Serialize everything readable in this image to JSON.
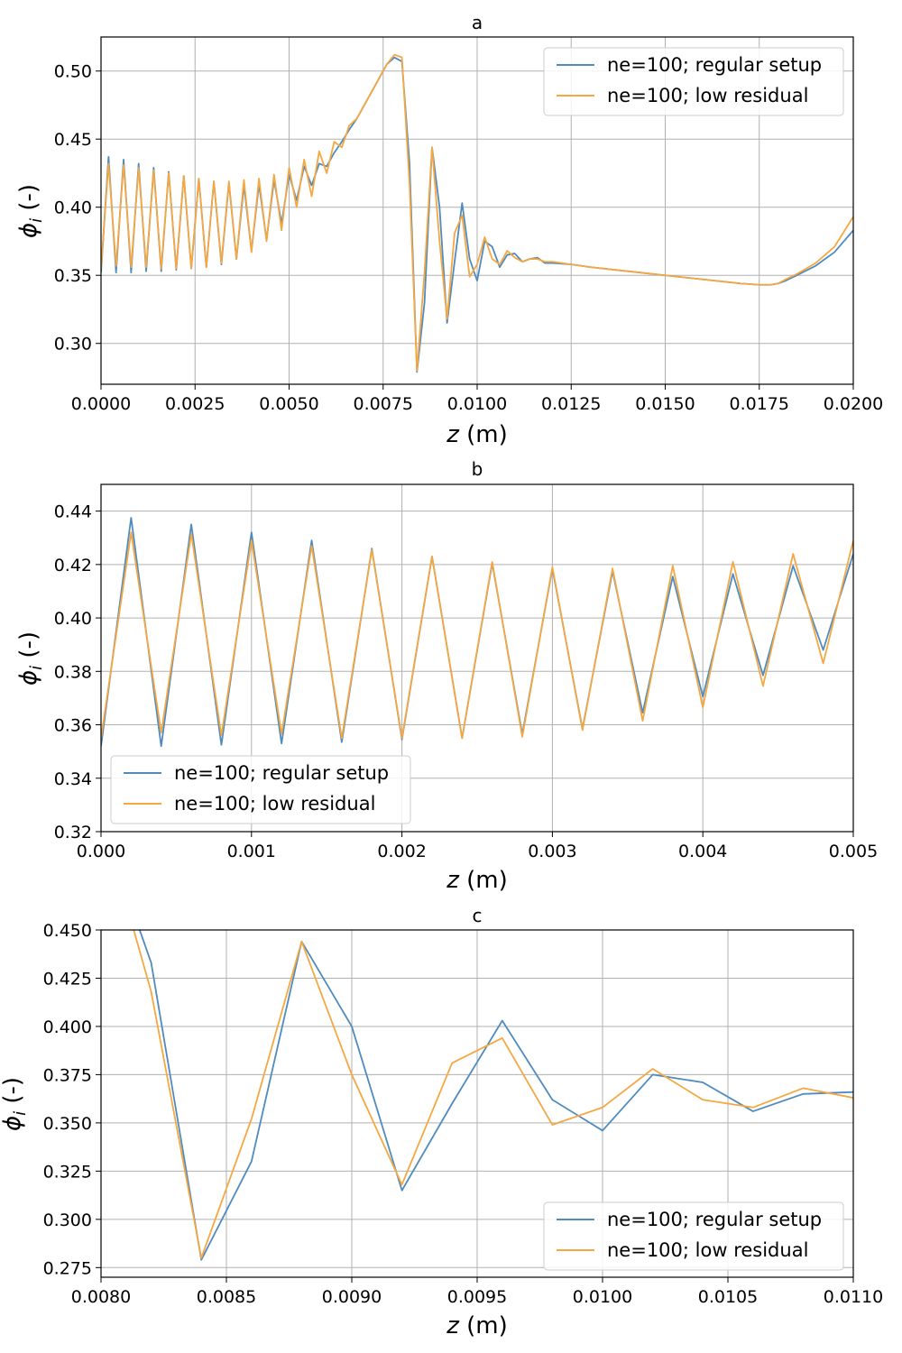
{
  "chart_data": [
    {
      "type": "line",
      "title": "a",
      "xlabel_var": "z",
      "xlabel_unit": " (m)",
      "ylabel_var": "ϕ",
      "ylabel_sub": "i",
      "ylabel_unit": " (-)",
      "xlim": [
        0.0,
        0.02
      ],
      "ylim": [
        0.27,
        0.525
      ],
      "xticks": [
        "0.0000",
        "0.0025",
        "0.0050",
        "0.0075",
        "0.0100",
        "0.0125",
        "0.0150",
        "0.0175",
        "0.0200"
      ],
      "yticks": [
        "0.30",
        "0.35",
        "0.40",
        "0.45",
        "0.50"
      ],
      "legend_position": "upper-right",
      "series": [
        {
          "name": "ne=100; regular setup",
          "color": "#4f8bbf",
          "x": [
            0.0,
            0.0002,
            0.0004,
            0.0006,
            0.0008,
            0.001,
            0.0012,
            0.0014,
            0.0016,
            0.0018,
            0.002,
            0.0022,
            0.0024,
            0.0026,
            0.0028,
            0.003,
            0.0032,
            0.0034,
            0.0036,
            0.0038,
            0.004,
            0.0042,
            0.0044,
            0.0046,
            0.0048,
            0.005,
            0.0052,
            0.0054,
            0.0056,
            0.0058,
            0.006,
            0.0062,
            0.0064,
            0.0066,
            0.0068,
            0.007,
            0.0072,
            0.0074,
            0.0076,
            0.0078,
            0.008,
            0.0082,
            0.0084,
            0.0086,
            0.0088,
            0.009,
            0.0092,
            0.0094,
            0.0096,
            0.0098,
            0.01,
            0.0102,
            0.0104,
            0.0106,
            0.0108,
            0.011,
            0.0112,
            0.0114,
            0.0116,
            0.0118,
            0.012,
            0.0125,
            0.013,
            0.014,
            0.015,
            0.016,
            0.017,
            0.0175,
            0.0178,
            0.018,
            0.0182,
            0.0185,
            0.019,
            0.0195,
            0.02
          ],
          "y": [
            0.352,
            0.437,
            0.352,
            0.435,
            0.352,
            0.432,
            0.353,
            0.429,
            0.353,
            0.426,
            0.354,
            0.423,
            0.355,
            0.421,
            0.356,
            0.419,
            0.358,
            0.418,
            0.362,
            0.416,
            0.368,
            0.417,
            0.376,
            0.42,
            0.388,
            0.424,
            0.405,
            0.43,
            0.416,
            0.432,
            0.43,
            0.44,
            0.448,
            0.457,
            0.465,
            0.475,
            0.485,
            0.495,
            0.505,
            0.51,
            0.507,
            0.433,
            0.279,
            0.33,
            0.444,
            0.4,
            0.315,
            0.36,
            0.403,
            0.362,
            0.346,
            0.375,
            0.371,
            0.356,
            0.365,
            0.366,
            0.36,
            0.362,
            0.363,
            0.359,
            0.359,
            0.358,
            0.356,
            0.353,
            0.35,
            0.347,
            0.344,
            0.343,
            0.343,
            0.344,
            0.346,
            0.35,
            0.357,
            0.367,
            0.383
          ]
        },
        {
          "name": "ne=100; low residual",
          "color": "#f5a742",
          "x": [
            0.0,
            0.0002,
            0.0004,
            0.0006,
            0.0008,
            0.001,
            0.0012,
            0.0014,
            0.0016,
            0.0018,
            0.002,
            0.0022,
            0.0024,
            0.0026,
            0.0028,
            0.003,
            0.0032,
            0.0034,
            0.0036,
            0.0038,
            0.004,
            0.0042,
            0.0044,
            0.0046,
            0.0048,
            0.005,
            0.0052,
            0.0054,
            0.0056,
            0.0058,
            0.006,
            0.0062,
            0.0064,
            0.0066,
            0.0068,
            0.007,
            0.0072,
            0.0074,
            0.0076,
            0.0078,
            0.008,
            0.0082,
            0.0084,
            0.0086,
            0.0088,
            0.009,
            0.0092,
            0.0094,
            0.0096,
            0.0098,
            0.01,
            0.0102,
            0.0104,
            0.0106,
            0.0108,
            0.011,
            0.0112,
            0.0114,
            0.0116,
            0.0118,
            0.012,
            0.0125,
            0.013,
            0.014,
            0.015,
            0.016,
            0.017,
            0.0175,
            0.0178,
            0.018,
            0.0182,
            0.0185,
            0.019,
            0.0195,
            0.02
          ],
          "y": [
            0.355,
            0.432,
            0.357,
            0.431,
            0.356,
            0.429,
            0.356,
            0.427,
            0.355,
            0.425,
            0.355,
            0.423,
            0.355,
            0.421,
            0.356,
            0.419,
            0.359,
            0.419,
            0.362,
            0.42,
            0.367,
            0.421,
            0.375,
            0.424,
            0.383,
            0.429,
            0.4,
            0.435,
            0.408,
            0.441,
            0.425,
            0.448,
            0.444,
            0.46,
            0.465,
            0.475,
            0.485,
            0.495,
            0.505,
            0.512,
            0.51,
            0.418,
            0.28,
            0.352,
            0.444,
            0.375,
            0.318,
            0.381,
            0.394,
            0.349,
            0.358,
            0.378,
            0.362,
            0.358,
            0.368,
            0.363,
            0.36,
            0.362,
            0.362,
            0.36,
            0.36,
            0.358,
            0.356,
            0.353,
            0.35,
            0.347,
            0.344,
            0.343,
            0.343,
            0.344,
            0.347,
            0.351,
            0.359,
            0.371,
            0.393
          ]
        }
      ]
    },
    {
      "type": "line",
      "title": "b",
      "xlabel_var": "z",
      "xlabel_unit": " (m)",
      "ylabel_var": "ϕ",
      "ylabel_sub": "i",
      "ylabel_unit": " (-)",
      "xlim": [
        0.0,
        0.005
      ],
      "ylim": [
        0.32,
        0.45
      ],
      "xticks": [
        "0.000",
        "0.001",
        "0.002",
        "0.003",
        "0.004",
        "0.005"
      ],
      "yticks": [
        "0.32",
        "0.34",
        "0.36",
        "0.38",
        "0.40",
        "0.42",
        "0.44"
      ],
      "legend_position": "lower-left",
      "series": [
        {
          "name": "ne=100; regular setup",
          "color": "#4f8bbf",
          "x": [
            0.0,
            0.0002,
            0.0004,
            0.0006,
            0.0008,
            0.001,
            0.0012,
            0.0014,
            0.0016,
            0.0018,
            0.002,
            0.0022,
            0.0024,
            0.0026,
            0.0028,
            0.003,
            0.0032,
            0.0034,
            0.0036,
            0.0038,
            0.004,
            0.0042,
            0.0044,
            0.0046,
            0.0048,
            0.005
          ],
          "y": [
            0.352,
            0.4375,
            0.352,
            0.435,
            0.3525,
            0.432,
            0.353,
            0.429,
            0.3535,
            0.426,
            0.3545,
            0.423,
            0.355,
            0.4205,
            0.3565,
            0.4185,
            0.3585,
            0.4175,
            0.3645,
            0.4155,
            0.3705,
            0.4165,
            0.3785,
            0.4195,
            0.388,
            0.424
          ]
        },
        {
          "name": "ne=100; low residual",
          "color": "#f5a742",
          "x": [
            0.0,
            0.0002,
            0.0004,
            0.0006,
            0.0008,
            0.001,
            0.0012,
            0.0014,
            0.0016,
            0.0018,
            0.002,
            0.0022,
            0.0024,
            0.0026,
            0.0028,
            0.003,
            0.0032,
            0.0034,
            0.0036,
            0.0038,
            0.004,
            0.0042,
            0.0044,
            0.0046,
            0.0048,
            0.005
          ],
          "y": [
            0.355,
            0.432,
            0.357,
            0.4315,
            0.356,
            0.429,
            0.3565,
            0.427,
            0.355,
            0.4255,
            0.355,
            0.423,
            0.355,
            0.421,
            0.3555,
            0.419,
            0.358,
            0.4185,
            0.3615,
            0.4195,
            0.3665,
            0.421,
            0.3745,
            0.424,
            0.383,
            0.429
          ]
        }
      ]
    },
    {
      "type": "line",
      "title": "c",
      "xlabel_var": "z",
      "xlabel_unit": " (m)",
      "ylabel_var": "ϕ",
      "ylabel_sub": "i",
      "ylabel_unit": " (-)",
      "xlim": [
        0.008,
        0.011
      ],
      "ylim": [
        0.27,
        0.45
      ],
      "xticks": [
        "0.0080",
        "0.0085",
        "0.0090",
        "0.0095",
        "0.0100",
        "0.0105",
        "0.0110"
      ],
      "yticks": [
        "0.275",
        "0.300",
        "0.325",
        "0.350",
        "0.375",
        "0.400",
        "0.425",
        "0.450"
      ],
      "legend_position": "lower-right",
      "series": [
        {
          "name": "ne=100; regular setup",
          "color": "#4f8bbf",
          "x": [
            0.008,
            0.0082,
            0.0084,
            0.0086,
            0.0088,
            0.009,
            0.0092,
            0.0094,
            0.0096,
            0.0098,
            0.01,
            0.0102,
            0.0104,
            0.0106,
            0.0108,
            0.011
          ],
          "y": [
            0.507,
            0.433,
            0.279,
            0.33,
            0.444,
            0.4,
            0.315,
            0.36,
            0.403,
            0.362,
            0.346,
            0.375,
            0.371,
            0.356,
            0.365,
            0.366
          ]
        },
        {
          "name": "ne=100; low residual",
          "color": "#f5a742",
          "x": [
            0.008,
            0.0082,
            0.0084,
            0.0086,
            0.0088,
            0.009,
            0.0092,
            0.0094,
            0.0096,
            0.0098,
            0.01,
            0.0102,
            0.0104,
            0.0106,
            0.0108,
            0.011
          ],
          "y": [
            0.51,
            0.418,
            0.28,
            0.352,
            0.444,
            0.375,
            0.318,
            0.381,
            0.394,
            0.349,
            0.358,
            0.378,
            0.362,
            0.358,
            0.368,
            0.363
          ]
        }
      ]
    }
  ]
}
